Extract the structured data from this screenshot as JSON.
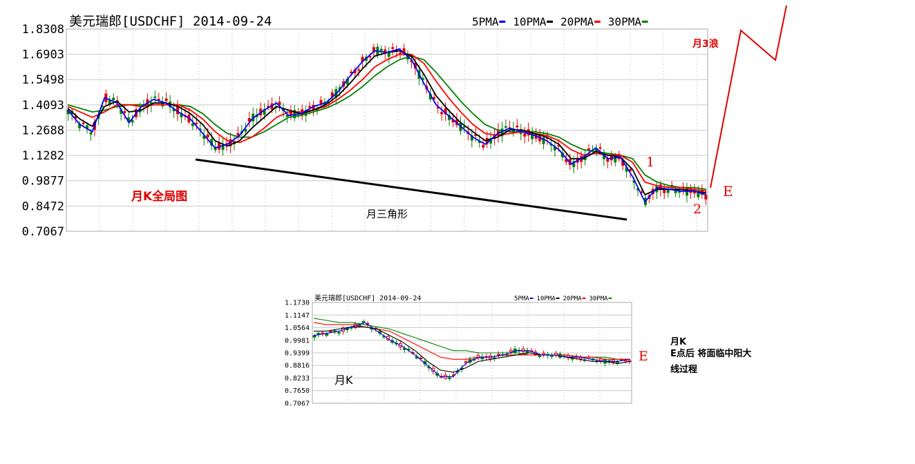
{
  "main_chart": {
    "title": "美元瑞郎[USDCHF] 2014-09-24",
    "legend": [
      {
        "label": "5PMA",
        "color": "#0000ff"
      },
      {
        "label": "10PMA",
        "color": "#000000"
      },
      {
        "label": "20PMA",
        "color": "#ff0000"
      },
      {
        "label": "30PMA",
        "color": "#008000"
      }
    ],
    "y_ticks": [
      "1.8308",
      "1.6903",
      "1.5498",
      "1.4093",
      "1.2688",
      "1.1282",
      "0.9877",
      "0.8472",
      "0.7067"
    ]
  },
  "inset_chart": {
    "title": "美元瑞郎[USDCHF] 2014-09-24",
    "legend": [
      {
        "label": "5PMA",
        "color": "#0000ff"
      },
      {
        "label": "10PMA",
        "color": "#000000"
      },
      {
        "label": "20PMA",
        "color": "#ff0000"
      },
      {
        "label": "30PMA",
        "color": "#008000"
      }
    ],
    "y_ticks": [
      "1.1730",
      "1.1147",
      "1.0564",
      "0.9981",
      "0.9399",
      "0.8816",
      "0.8233",
      "0.7650",
      "0.7067"
    ]
  },
  "annotations": {
    "monthly_global": "月K全局图",
    "triangle": "月三角形",
    "wave3": "月3浪",
    "label_1": "1",
    "label_2": "2",
    "label_e_main": "E",
    "label_e_inset": "E",
    "inset_label": "月K",
    "note_line1": "月K",
    "note_line2": "E点后 将面临中阳大",
    "note_line3": "线过程"
  },
  "chart_data": [
    {
      "type": "line",
      "title": "美元瑞郎[USDCHF] 2014-09-24",
      "ylim": [
        0.7067,
        1.8308
      ],
      "grid": true,
      "legend_position": "top-right",
      "series": [
        {
          "name": "5PMA",
          "color": "#0000ff",
          "values": [
            1.38,
            1.3,
            1.26,
            1.45,
            1.42,
            1.31,
            1.4,
            1.44,
            1.42,
            1.37,
            1.33,
            1.25,
            1.17,
            1.19,
            1.24,
            1.33,
            1.38,
            1.42,
            1.35,
            1.36,
            1.4,
            1.42,
            1.48,
            1.57,
            1.65,
            1.71,
            1.7,
            1.72,
            1.66,
            1.53,
            1.41,
            1.35,
            1.29,
            1.23,
            1.19,
            1.25,
            1.28,
            1.26,
            1.24,
            1.21,
            1.16,
            1.08,
            1.12,
            1.17,
            1.11,
            1.12,
            1.01,
            0.87,
            0.95,
            0.94,
            0.93,
            0.93,
            0.91
          ]
        },
        {
          "name": "10PMA",
          "color": "#000000",
          "values": [
            1.39,
            1.33,
            1.29,
            1.4,
            1.43,
            1.37,
            1.38,
            1.42,
            1.42,
            1.4,
            1.36,
            1.3,
            1.21,
            1.18,
            1.21,
            1.28,
            1.34,
            1.4,
            1.38,
            1.36,
            1.38,
            1.41,
            1.46,
            1.53,
            1.61,
            1.68,
            1.7,
            1.71,
            1.68,
            1.58,
            1.46,
            1.38,
            1.31,
            1.26,
            1.21,
            1.23,
            1.27,
            1.27,
            1.25,
            1.23,
            1.19,
            1.11,
            1.11,
            1.15,
            1.13,
            1.12,
            1.05,
            0.91,
            0.94,
            0.94,
            0.94,
            0.93,
            0.92
          ]
        },
        {
          "name": "20PMA",
          "color": "#ff0000",
          "values": [
            1.4,
            1.37,
            1.34,
            1.37,
            1.41,
            1.41,
            1.4,
            1.41,
            1.41,
            1.41,
            1.38,
            1.33,
            1.26,
            1.21,
            1.2,
            1.23,
            1.28,
            1.34,
            1.37,
            1.37,
            1.38,
            1.4,
            1.44,
            1.49,
            1.55,
            1.62,
            1.66,
            1.69,
            1.69,
            1.64,
            1.54,
            1.45,
            1.37,
            1.3,
            1.25,
            1.24,
            1.25,
            1.26,
            1.25,
            1.24,
            1.21,
            1.16,
            1.13,
            1.14,
            1.13,
            1.13,
            1.09,
            0.98,
            0.96,
            0.95,
            0.95,
            0.94,
            0.93
          ]
        },
        {
          "name": "30PMA",
          "color": "#008000",
          "values": [
            1.41,
            1.39,
            1.37,
            1.38,
            1.4,
            1.41,
            1.41,
            1.41,
            1.41,
            1.41,
            1.4,
            1.36,
            1.3,
            1.25,
            1.23,
            1.23,
            1.26,
            1.3,
            1.34,
            1.35,
            1.37,
            1.39,
            1.42,
            1.46,
            1.51,
            1.57,
            1.62,
            1.66,
            1.68,
            1.66,
            1.59,
            1.51,
            1.43,
            1.36,
            1.3,
            1.27,
            1.26,
            1.26,
            1.26,
            1.25,
            1.23,
            1.19,
            1.16,
            1.15,
            1.14,
            1.13,
            1.11,
            1.02,
            0.98,
            0.96,
            0.95,
            0.95,
            0.94
          ]
        }
      ]
    },
    {
      "type": "line",
      "title": "美元瑞郎[USDCHF] 2014-09-24",
      "ylim": [
        0.7067,
        1.173
      ],
      "grid": true,
      "legend_position": "top-right",
      "series": [
        {
          "name": "5PMA",
          "color": "#0000ff",
          "values": [
            1.02,
            1.03,
            1.04,
            1.06,
            1.08,
            1.04,
            1.0,
            0.97,
            0.93,
            0.88,
            0.83,
            0.83,
            0.89,
            0.92,
            0.92,
            0.93,
            0.95,
            0.95,
            0.93,
            0.93,
            0.92,
            0.92,
            0.91,
            0.9,
            0.9,
            0.91
          ]
        },
        {
          "name": "10PMA",
          "color": "#000000",
          "values": [
            1.04,
            1.04,
            1.05,
            1.06,
            1.06,
            1.05,
            1.02,
            0.99,
            0.95,
            0.9,
            0.86,
            0.85,
            0.87,
            0.9,
            0.91,
            0.92,
            0.93,
            0.94,
            0.93,
            0.93,
            0.92,
            0.91,
            0.9,
            0.9,
            0.89,
            0.9
          ]
        },
        {
          "name": "20PMA",
          "color": "#ff0000",
          "values": [
            1.08,
            1.07,
            1.07,
            1.07,
            1.06,
            1.05,
            1.04,
            1.01,
            0.98,
            0.95,
            0.92,
            0.91,
            0.91,
            0.92,
            0.92,
            0.93,
            0.93,
            0.93,
            0.93,
            0.93,
            0.93,
            0.92,
            0.92,
            0.91,
            0.91,
            0.91
          ]
        },
        {
          "name": "30PMA",
          "color": "#008000",
          "values": [
            1.1,
            1.09,
            1.08,
            1.08,
            1.07,
            1.06,
            1.05,
            1.03,
            1.01,
            0.99,
            0.97,
            0.95,
            0.95,
            0.94,
            0.94,
            0.94,
            0.94,
            0.93,
            0.93,
            0.93,
            0.92,
            0.92,
            0.92,
            0.92,
            0.91,
            0.91
          ]
        }
      ]
    }
  ]
}
